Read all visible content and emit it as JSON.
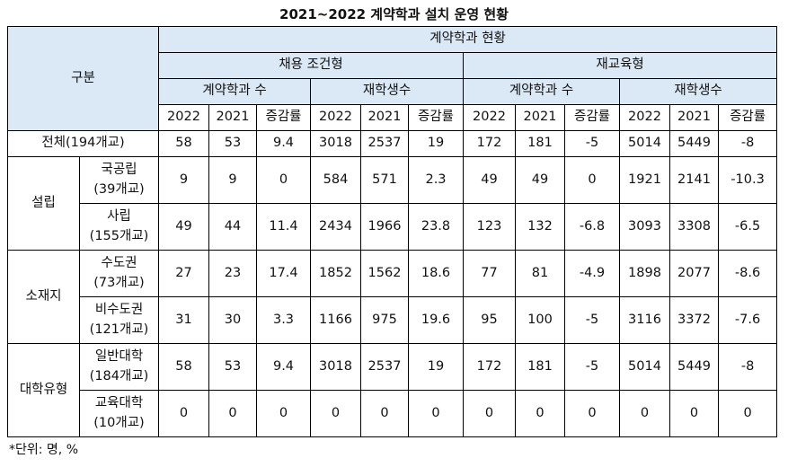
{
  "title": "2021~2022 계약학과 설치 운영 현황",
  "header": {
    "category": "구분",
    "group": "계약학과 현황",
    "type1": "채용 조건형",
    "type2": "재교육형",
    "count": "계약학과 수",
    "students": "재학생수",
    "y2022": "2022",
    "y2021": "2021",
    "change": "증감률"
  },
  "groups": {
    "establishment": "설립",
    "location": "소재지",
    "school_type": "대학유형"
  },
  "rows": [
    {
      "name": "전체(194개교)",
      "values": [
        "58",
        "53",
        "9.4",
        "3018",
        "2537",
        "19",
        "172",
        "181",
        "-5",
        "5014",
        "5449",
        "-8"
      ]
    },
    {
      "name": "국공립",
      "sub": "(39개교)",
      "values": [
        "9",
        "9",
        "0",
        "584",
        "571",
        "2.3",
        "49",
        "49",
        "0",
        "1921",
        "2141",
        "-10.3"
      ]
    },
    {
      "name": "사립",
      "sub": "(155개교)",
      "values": [
        "49",
        "44",
        "11.4",
        "2434",
        "1966",
        "23.8",
        "123",
        "132",
        "-6.8",
        "3093",
        "3308",
        "-6.5"
      ]
    },
    {
      "name": "수도권",
      "sub": "(73개교)",
      "values": [
        "27",
        "23",
        "17.4",
        "1852",
        "1562",
        "18.6",
        "77",
        "81",
        "-4.9",
        "1898",
        "2077",
        "-8.6"
      ]
    },
    {
      "name": "비수도권",
      "sub": "(121개교)",
      "values": [
        "31",
        "30",
        "3.3",
        "1166",
        "975",
        "19.6",
        "95",
        "100",
        "-5",
        "3116",
        "3372",
        "-7.6"
      ]
    },
    {
      "name": "일반대학",
      "sub": "(184개교)",
      "values": [
        "58",
        "53",
        "9.4",
        "3018",
        "2537",
        "19",
        "172",
        "181",
        "-5",
        "5014",
        "5449",
        "-8"
      ]
    },
    {
      "name": "교육대학",
      "sub": "(10개교)",
      "values": [
        "0",
        "0",
        "0",
        "0",
        "0",
        "0",
        "0",
        "0",
        "0",
        "0",
        "0",
        "0"
      ]
    }
  ],
  "footnote": "*단위: 명, %"
}
